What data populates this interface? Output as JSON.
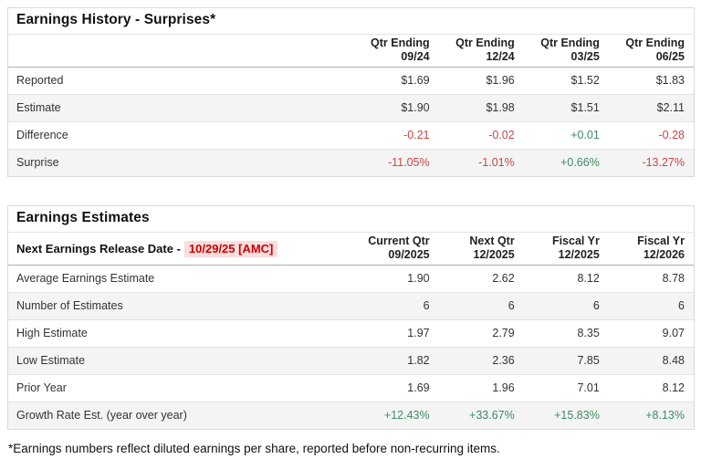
{
  "colors": {
    "negative": "#cc4444",
    "positive": "#3d8b63",
    "release_date_text": "#cc0000",
    "release_date_bg": "#fbdede",
    "row_alt_bg": "#f4f4f4"
  },
  "surprises": {
    "title": "Earnings History - Surprises*",
    "columns": [
      {
        "line1": "Qtr Ending",
        "line2": "09/24"
      },
      {
        "line1": "Qtr Ending",
        "line2": "12/24"
      },
      {
        "line1": "Qtr Ending",
        "line2": "03/25"
      },
      {
        "line1": "Qtr Ending",
        "line2": "06/25"
      }
    ],
    "rows": [
      {
        "label": "Reported",
        "values": [
          "$1.69",
          "$1.96",
          "$1.52",
          "$1.83"
        ],
        "tones": [
          "",
          "",
          "",
          ""
        ]
      },
      {
        "label": "Estimate",
        "values": [
          "$1.90",
          "$1.98",
          "$1.51",
          "$2.11"
        ],
        "tones": [
          "",
          "",
          "",
          ""
        ]
      },
      {
        "label": "Difference",
        "values": [
          "-0.21",
          "-0.02",
          "+0.01",
          "-0.28"
        ],
        "tones": [
          "neg",
          "neg",
          "pos",
          "neg"
        ]
      },
      {
        "label": "Surprise",
        "values": [
          "-11.05%",
          "-1.01%",
          "+0.66%",
          "-13.27%"
        ],
        "tones": [
          "neg",
          "neg",
          "pos",
          "neg"
        ]
      }
    ]
  },
  "estimates": {
    "title": "Earnings Estimates",
    "release_label": "Next Earnings Release Date -",
    "release_date": "10/29/25 [AMC]",
    "columns": [
      {
        "line1": "Current Qtr",
        "line2": "09/2025"
      },
      {
        "line1": "Next Qtr",
        "line2": "12/2025"
      },
      {
        "line1": "Fiscal Yr",
        "line2": "12/2025"
      },
      {
        "line1": "Fiscal Yr",
        "line2": "12/2026"
      }
    ],
    "rows": [
      {
        "label": "Average Earnings Estimate",
        "values": [
          "1.90",
          "2.62",
          "8.12",
          "8.78"
        ],
        "tones": [
          "",
          "",
          "",
          ""
        ]
      },
      {
        "label": "Number of Estimates",
        "values": [
          "6",
          "6",
          "6",
          "6"
        ],
        "tones": [
          "",
          "",
          "",
          ""
        ]
      },
      {
        "label": "High Estimate",
        "values": [
          "1.97",
          "2.79",
          "8.35",
          "9.07"
        ],
        "tones": [
          "",
          "",
          "",
          ""
        ]
      },
      {
        "label": "Low Estimate",
        "values": [
          "1.82",
          "2.36",
          "7.85",
          "8.48"
        ],
        "tones": [
          "",
          "",
          "",
          ""
        ]
      },
      {
        "label": "Prior Year",
        "values": [
          "1.69",
          "1.96",
          "7.01",
          "8.12"
        ],
        "tones": [
          "",
          "",
          "",
          ""
        ]
      },
      {
        "label": "Growth Rate Est. (year over year)",
        "values": [
          "+12.43%",
          "+33.67%",
          "+15.83%",
          "+8.13%"
        ],
        "tones": [
          "pos",
          "pos",
          "pos",
          "pos"
        ]
      }
    ]
  },
  "footnote": "*Earnings numbers reflect diluted earnings per share, reported before non-recurring items."
}
